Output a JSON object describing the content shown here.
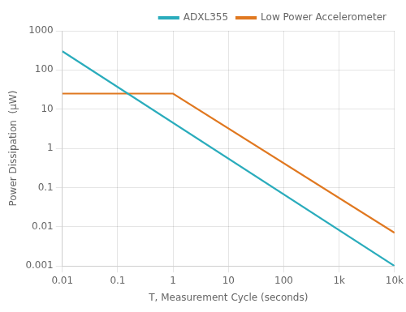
{
  "chart_data": {
    "type": "line",
    "log": true,
    "xlabel": "T, Measurement Cycle (seconds)",
    "ylabel": "Power Dissipation  (μW)",
    "series": [
      {
        "name": "ADXL355",
        "color": "#2AACBC",
        "x": [
          0.01,
          10000
        ],
        "values": [
          300,
          0.001
        ]
      },
      {
        "name": "Low Power Accelerometer",
        "color": "#E07820",
        "x": [
          0.01,
          1.0,
          10000
        ],
        "values": [
          25,
          25,
          0.007
        ]
      }
    ],
    "xlim": [
      0.01,
      10000
    ],
    "ylim": [
      0.001,
      1000
    ],
    "xticks": [
      0.01,
      0.1,
      1,
      10,
      100,
      {
        "value": 1000,
        "label": "1k"
      },
      {
        "value": 10000,
        "label": "10k"
      }
    ],
    "yticks": [
      0.001,
      0.01,
      0.1,
      1,
      10,
      100,
      1000
    ],
    "grid": true,
    "legend": "upper right"
  }
}
